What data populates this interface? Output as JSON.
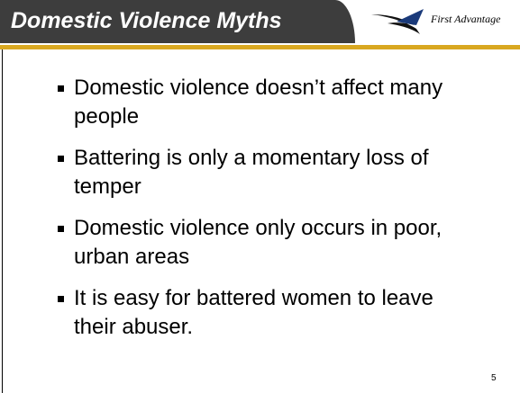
{
  "header": {
    "title": "Domestic Violence Myths",
    "logo_text": "First Advantage"
  },
  "bullets": [
    "Domestic violence doesn’t affect many people",
    "Battering is only a momentary loss of temper",
    "Domestic violence only occurs in poor, urban areas",
    "It is easy for battered women to leave their abuser."
  ],
  "page_number": "5"
}
